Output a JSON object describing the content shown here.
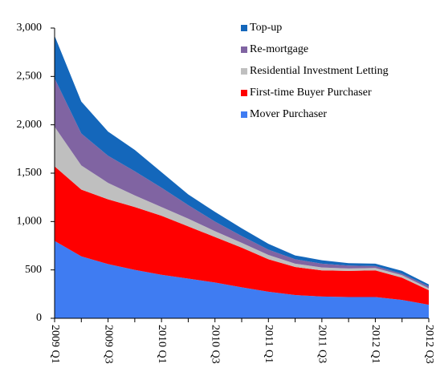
{
  "chart_data": {
    "type": "stacked_area",
    "categories": [
      "2009 Q1",
      null,
      "2009 Q3",
      null,
      "2010 Q1",
      null,
      "2010 Q3",
      null,
      "2011 Q1",
      null,
      "2011 Q3",
      null,
      "2012 Q1",
      null,
      "2012 Q3"
    ],
    "series": [
      {
        "name": "Mover Purchaser",
        "color": "#3f7cf2",
        "values": [
          800,
          640,
          560,
          500,
          450,
          410,
          370,
          320,
          275,
          240,
          225,
          220,
          220,
          190,
          140
        ]
      },
      {
        "name": "First-time Buyer Purchaser",
        "color": "#ff0000",
        "values": [
          770,
          690,
          670,
          650,
          610,
          540,
          470,
          410,
          335,
          290,
          270,
          270,
          275,
          230,
          150
        ]
      },
      {
        "name": "Residential Investment Letting",
        "color": "#bfbfbf",
        "values": [
          410,
          250,
          170,
          120,
          90,
          80,
          60,
          50,
          45,
          35,
          30,
          25,
          25,
          25,
          20
        ]
      },
      {
        "name": "Re-mortgage",
        "color": "#8064a2",
        "values": [
          500,
          330,
          280,
          250,
          200,
          140,
          100,
          70,
          55,
          45,
          40,
          30,
          20,
          15,
          20
        ]
      },
      {
        "name": "Top-up",
        "color": "#1467bb",
        "values": [
          440,
          330,
          250,
          220,
          160,
          110,
          100,
          80,
          60,
          40,
          35,
          25,
          25,
          30,
          20
        ]
      }
    ],
    "ylim": [
      0,
      3000
    ],
    "yticks": [
      0,
      500,
      {
        "value": 1000,
        "label": "1,000"
      },
      {
        "value": 1500,
        "label": "1,500"
      },
      {
        "value": 2000,
        "label": "2,000"
      },
      {
        "value": 2500,
        "label": "2,500"
      },
      {
        "value": 3000,
        "label": "3,000"
      }
    ],
    "legend": "upper right",
    "grid": false
  }
}
